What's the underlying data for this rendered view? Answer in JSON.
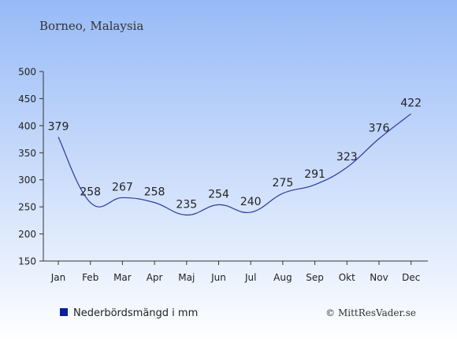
{
  "header": {
    "location": "Borneo, Malaysia"
  },
  "legend": {
    "label": "Nederbördsmängd i mm",
    "color": "#0a1f9e"
  },
  "footer": {
    "copyright": "© MittResVader.se"
  },
  "colors": {
    "bg_top": "#97baf7",
    "bg_bottom": "#ffffff",
    "line": "#2a3aa0",
    "text": "#222222",
    "title_text": "#333333"
  },
  "chart_data": {
    "type": "line",
    "categories": [
      "Jan",
      "Feb",
      "Mar",
      "Apr",
      "Maj",
      "Jun",
      "Jul",
      "Aug",
      "Sep",
      "Okt",
      "Nov",
      "Dec"
    ],
    "series": [
      {
        "name": "Nederbördsmängd i mm",
        "values": [
          379,
          258,
          267,
          258,
          235,
          254,
          240,
          275,
          291,
          323,
          376,
          422
        ]
      }
    ],
    "data_labels": [
      "379",
      "258",
      "267",
      "258",
      "235",
      "254",
      "240",
      "275",
      "291",
      "323",
      "376",
      "422"
    ],
    "yticks": [
      "150",
      "200",
      "250",
      "300",
      "350",
      "400",
      "450",
      "500"
    ],
    "ylim": [
      150,
      500
    ],
    "grid": false,
    "legend_position": "bottom-left"
  }
}
